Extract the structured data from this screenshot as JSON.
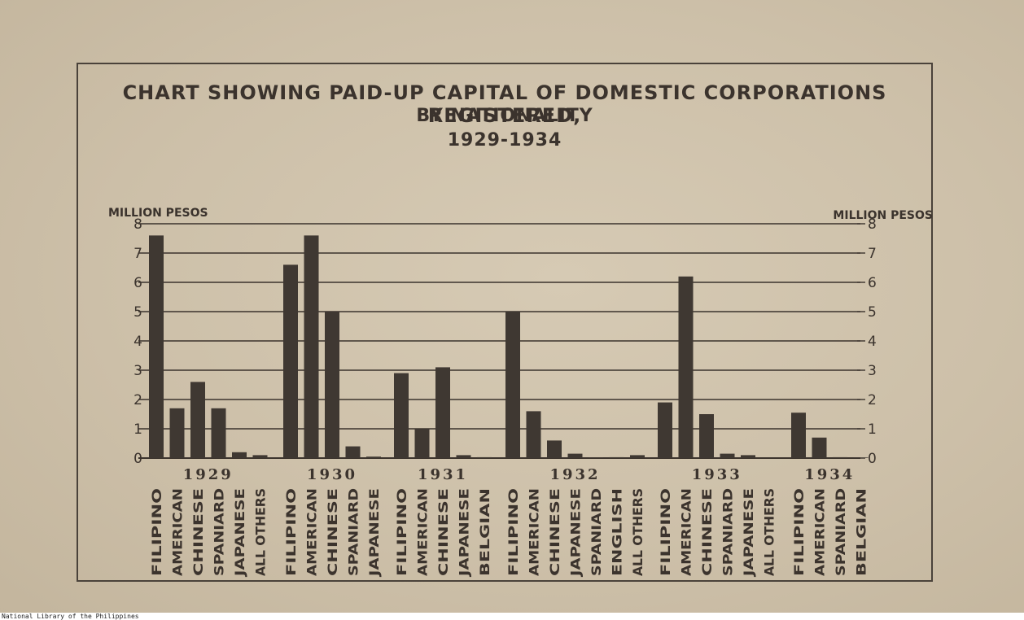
{
  "footer": "National Library of the Philippines",
  "colors": {
    "paper": "#cdc0a9",
    "ink": "#3b332d",
    "bar": "#3f3832"
  },
  "chart_data": {
    "type": "bar",
    "title": "CHART SHOWING PAID-UP CAPITAL OF DOMESTIC CORPORATIONS REGISTERED,",
    "subtitle": "BY NATIONALITY",
    "period": "1929-1934",
    "ylabel_left": "MILLION PESOS",
    "ylabel_right": "MILLION PESOS",
    "ylim": [
      0,
      8
    ],
    "yticks": [
      "0",
      "1",
      "2",
      "3",
      "4",
      "5",
      "6",
      "7",
      "8"
    ],
    "grid": true,
    "groups": [
      {
        "year": "1929",
        "bars": [
          {
            "label": "FILIPINO",
            "value": 7.6
          },
          {
            "label": "AMERICAN",
            "value": 1.7
          },
          {
            "label": "CHINESE",
            "value": 2.6
          },
          {
            "label": "SPANIARD",
            "value": 1.7
          },
          {
            "label": "JAPANESE",
            "value": 0.2
          },
          {
            "label": "ALL OTHERS",
            "value": 0.1
          }
        ]
      },
      {
        "year": "1930",
        "bars": [
          {
            "label": "FILIPINO",
            "value": 6.6
          },
          {
            "label": "AMERICAN",
            "value": 7.6
          },
          {
            "label": "CHINESE",
            "value": 5.0
          },
          {
            "label": "SPANIARD",
            "value": 0.4
          },
          {
            "label": "JAPANESE",
            "value": 0.05
          }
        ]
      },
      {
        "year": "1931",
        "bars": [
          {
            "label": "FILIPINO",
            "value": 2.9
          },
          {
            "label": "AMERICAN",
            "value": 1.0
          },
          {
            "label": "CHINESE",
            "value": 3.1
          },
          {
            "label": "JAPANESE",
            "value": 0.1
          },
          {
            "label": "BELGIAN",
            "value": 0.03
          }
        ]
      },
      {
        "year": "1932",
        "bars": [
          {
            "label": "FILIPINO",
            "value": 5.0
          },
          {
            "label": "AMERICAN",
            "value": 1.6
          },
          {
            "label": "CHINESE",
            "value": 0.6
          },
          {
            "label": "JAPANESE",
            "value": 0.15
          },
          {
            "label": "SPANIARD",
            "value": 0.02
          },
          {
            "label": "ENGLISH",
            "value": 0.03
          },
          {
            "label": "ALL OTHERS",
            "value": 0.1
          }
        ]
      },
      {
        "year": "1933",
        "bars": [
          {
            "label": "FILIPINO",
            "value": 1.9
          },
          {
            "label": "AMERICAN",
            "value": 6.2
          },
          {
            "label": "CHINESE",
            "value": 1.5
          },
          {
            "label": "SPANIARD",
            "value": 0.15
          },
          {
            "label": "JAPANESE",
            "value": 0.1
          },
          {
            "label": "ALL OTHERS",
            "value": 0.0
          }
        ]
      },
      {
        "year": "1934",
        "bars": [
          {
            "label": "FILIPINO",
            "value": 1.55
          },
          {
            "label": "AMERICAN",
            "value": 0.7
          },
          {
            "label": "SPANIARD",
            "value": 0.03
          },
          {
            "label": "BELGIAN",
            "value": 0.02
          }
        ]
      }
    ]
  }
}
